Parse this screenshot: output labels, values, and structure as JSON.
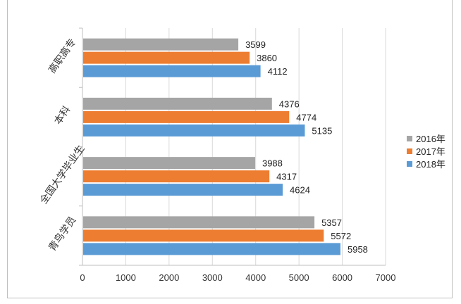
{
  "chart_data": {
    "type": "bar",
    "orientation": "horizontal",
    "categories": [
      "高职高专",
      "本科",
      "全国大学毕业生",
      "青鸟学员"
    ],
    "series": [
      {
        "name": "2016年",
        "color": "#a5a5a5",
        "values": [
          3599,
          4376,
          3988,
          5357
        ]
      },
      {
        "name": "2017年",
        "color": "#ed7d31",
        "values": [
          3860,
          4774,
          4317,
          5572
        ]
      },
      {
        "name": "2018年",
        "color": "#5b9bd5",
        "values": [
          4112,
          5135,
          4624,
          5958
        ]
      }
    ],
    "xlim": [
      0,
      7000
    ],
    "xticks": [
      "0",
      "1000",
      "2000",
      "3000",
      "4000",
      "5000",
      "6000",
      "7000"
    ],
    "grid": true,
    "data_labels": true,
    "legend_placement": "right"
  }
}
